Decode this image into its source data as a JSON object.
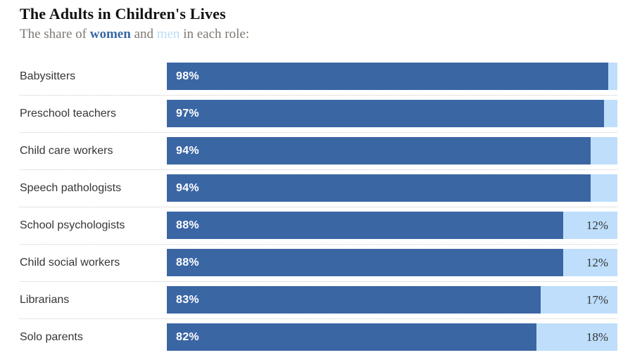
{
  "header": {
    "title": "The Adults in Children's Lives",
    "subtitle": {
      "prefix": "The share of ",
      "women_word": "women",
      "mid": " and ",
      "men_word": "men",
      "suffix": " in each role:"
    }
  },
  "colors": {
    "women_bar": "#3b66a4",
    "men_bar": "#bedefb",
    "women_text": "#3767a7",
    "men_text": "#bcdcf8"
  },
  "chart_data": {
    "type": "bar",
    "orientation": "horizontal",
    "stacked": true,
    "title": "The Adults in Children's Lives",
    "subtitle": "The share of women and men in each role:",
    "categories": [
      "Babysitters",
      "Preschool teachers",
      "Child care workers",
      "Speech pathologists",
      "School psychologists",
      "Child social workers",
      "Librarians",
      "Solo parents"
    ],
    "series": [
      {
        "name": "women",
        "color": "#3b66a4",
        "values": [
          98,
          97,
          94,
          94,
          88,
          88,
          83,
          82
        ]
      },
      {
        "name": "men",
        "color": "#bedefb",
        "values": [
          2,
          3,
          6,
          6,
          12,
          12,
          17,
          18
        ]
      }
    ],
    "xlim": [
      0,
      100
    ],
    "grid": false,
    "legend": "inline-in-subtitle",
    "women_labels": [
      "98%",
      "97%",
      "94%",
      "94%",
      "88%",
      "88%",
      "83%",
      "82%"
    ],
    "men_labels": [
      "",
      "",
      "",
      "",
      "12%",
      "12%",
      "17%",
      "18%"
    ]
  }
}
